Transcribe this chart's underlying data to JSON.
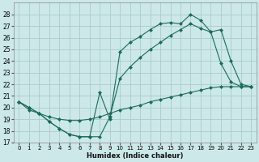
{
  "xlabel": "Humidex (Indice chaleur)",
  "background_color": "#cce8e8",
  "grid_color": "#aacccc",
  "line_color": "#1a6b5a",
  "xlim": [
    -0.5,
    23.5
  ],
  "ylim": [
    17,
    29
  ],
  "xticks": [
    0,
    1,
    2,
    3,
    4,
    5,
    6,
    7,
    8,
    9,
    10,
    11,
    12,
    13,
    14,
    15,
    16,
    17,
    18,
    19,
    20,
    21,
    22,
    23
  ],
  "yticks": [
    17,
    18,
    19,
    20,
    21,
    22,
    23,
    24,
    25,
    26,
    27,
    28
  ],
  "line1_x": [
    0,
    1,
    2,
    3,
    4,
    5,
    6,
    7,
    8,
    9,
    10,
    11,
    12,
    13,
    14,
    15,
    16,
    17,
    18,
    19,
    20,
    21,
    22,
    23
  ],
  "line1_y": [
    20.5,
    20.0,
    19.5,
    18.8,
    18.2,
    17.7,
    17.5,
    17.5,
    21.3,
    19.0,
    24.8,
    25.6,
    26.1,
    26.7,
    27.2,
    27.3,
    27.2,
    28.0,
    27.5,
    26.5,
    23.8,
    22.2,
    21.8,
    21.8
  ],
  "line2_x": [
    0,
    1,
    2,
    3,
    4,
    5,
    6,
    7,
    8,
    9,
    10,
    11,
    12,
    13,
    14,
    15,
    16,
    17,
    18,
    19,
    20,
    21,
    22,
    23
  ],
  "line2_y": [
    20.5,
    20.0,
    19.5,
    18.8,
    18.2,
    17.7,
    17.5,
    17.5,
    17.5,
    19.2,
    22.5,
    23.5,
    24.3,
    25.0,
    25.6,
    26.2,
    26.7,
    27.2,
    26.8,
    26.5,
    26.7,
    24.0,
    22.0,
    21.8
  ],
  "line3_x": [
    0,
    1,
    2,
    3,
    4,
    5,
    6,
    7,
    8,
    9,
    10,
    11,
    12,
    13,
    14,
    15,
    16,
    17,
    18,
    19,
    20,
    21,
    22,
    23
  ],
  "line3_y": [
    20.5,
    19.8,
    19.5,
    19.2,
    19.0,
    18.9,
    18.9,
    19.0,
    19.2,
    19.5,
    19.8,
    20.0,
    20.2,
    20.5,
    20.7,
    20.9,
    21.1,
    21.3,
    21.5,
    21.7,
    21.8,
    21.8,
    21.8,
    21.8
  ]
}
